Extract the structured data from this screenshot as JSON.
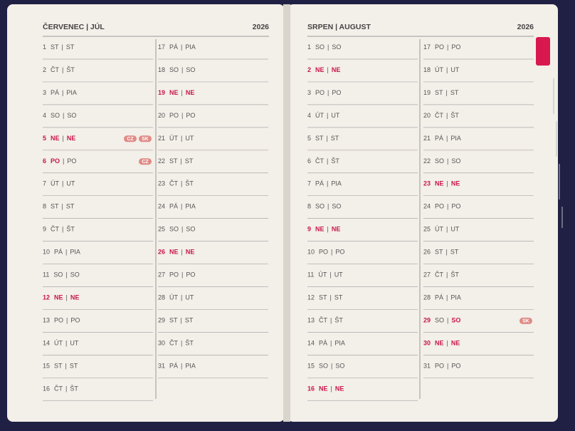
{
  "sep": "|",
  "pages": [
    {
      "title": "ČERVENEC | JÚL",
      "year": "2026",
      "days": [
        {
          "day": "1",
          "cz": "ST",
          "sk": "ST"
        },
        {
          "day": "2",
          "cz": "ČT",
          "sk": "ŠT"
        },
        {
          "day": "3",
          "cz": "PÁ",
          "sk": "PIA"
        },
        {
          "day": "4",
          "cz": "SO",
          "sk": "SO"
        },
        {
          "day": "5",
          "cz": "NE",
          "sk": "NE",
          "red_cz": true,
          "red_sk": true,
          "badges": [
            "CZ",
            "SK"
          ]
        },
        {
          "day": "6",
          "cz": "PO",
          "sk": "PO",
          "red_cz": true,
          "badges": [
            "CZ"
          ]
        },
        {
          "day": "7",
          "cz": "ÚT",
          "sk": "UT"
        },
        {
          "day": "8",
          "cz": "ST",
          "sk": "ST"
        },
        {
          "day": "9",
          "cz": "ČT",
          "sk": "ŠT"
        },
        {
          "day": "10",
          "cz": "PÁ",
          "sk": "PIA"
        },
        {
          "day": "11",
          "cz": "SO",
          "sk": "SO"
        },
        {
          "day": "12",
          "cz": "NE",
          "sk": "NE",
          "red_cz": true,
          "red_sk": true
        },
        {
          "day": "13",
          "cz": "PO",
          "sk": "PO"
        },
        {
          "day": "14",
          "cz": "ÚT",
          "sk": "UT"
        },
        {
          "day": "15",
          "cz": "ST",
          "sk": "ST"
        },
        {
          "day": "16",
          "cz": "ČT",
          "sk": "ŠT"
        },
        {
          "day": "17",
          "cz": "PÁ",
          "sk": "PIA"
        },
        {
          "day": "18",
          "cz": "SO",
          "sk": "SO"
        },
        {
          "day": "19",
          "cz": "NE",
          "sk": "NE",
          "red_cz": true,
          "red_sk": true
        },
        {
          "day": "20",
          "cz": "PO",
          "sk": "PO"
        },
        {
          "day": "21",
          "cz": "ÚT",
          "sk": "UT"
        },
        {
          "day": "22",
          "cz": "ST",
          "sk": "ST"
        },
        {
          "day": "23",
          "cz": "ČT",
          "sk": "ŠT"
        },
        {
          "day": "24",
          "cz": "PÁ",
          "sk": "PIA"
        },
        {
          "day": "25",
          "cz": "SO",
          "sk": "SO"
        },
        {
          "day": "26",
          "cz": "NE",
          "sk": "NE",
          "red_cz": true,
          "red_sk": true
        },
        {
          "day": "27",
          "cz": "PO",
          "sk": "PO"
        },
        {
          "day": "28",
          "cz": "ÚT",
          "sk": "UT"
        },
        {
          "day": "29",
          "cz": "ST",
          "sk": "ST"
        },
        {
          "day": "30",
          "cz": "ČT",
          "sk": "ŠT"
        },
        {
          "day": "31",
          "cz": "PÁ",
          "sk": "PIA"
        }
      ]
    },
    {
      "title": "SRPEN | AUGUST",
      "year": "2026",
      "days": [
        {
          "day": "1",
          "cz": "SO",
          "sk": "SO"
        },
        {
          "day": "2",
          "cz": "NE",
          "sk": "NE",
          "red_cz": true,
          "red_sk": true
        },
        {
          "day": "3",
          "cz": "PO",
          "sk": "PO"
        },
        {
          "day": "4",
          "cz": "ÚT",
          "sk": "UT"
        },
        {
          "day": "5",
          "cz": "ST",
          "sk": "ST"
        },
        {
          "day": "6",
          "cz": "ČT",
          "sk": "ŠT"
        },
        {
          "day": "7",
          "cz": "PÁ",
          "sk": "PIA"
        },
        {
          "day": "8",
          "cz": "SO",
          "sk": "SO"
        },
        {
          "day": "9",
          "cz": "NE",
          "sk": "NE",
          "red_cz": true,
          "red_sk": true
        },
        {
          "day": "10",
          "cz": "PO",
          "sk": "PO"
        },
        {
          "day": "11",
          "cz": "ÚT",
          "sk": "UT"
        },
        {
          "day": "12",
          "cz": "ST",
          "sk": "ST"
        },
        {
          "day": "13",
          "cz": "ČT",
          "sk": "ŠT"
        },
        {
          "day": "14",
          "cz": "PÁ",
          "sk": "PIA"
        },
        {
          "day": "15",
          "cz": "SO",
          "sk": "SO"
        },
        {
          "day": "16",
          "cz": "NE",
          "sk": "NE",
          "red_cz": true,
          "red_sk": true
        },
        {
          "day": "17",
          "cz": "PO",
          "sk": "PO"
        },
        {
          "day": "18",
          "cz": "ÚT",
          "sk": "UT"
        },
        {
          "day": "19",
          "cz": "ST",
          "sk": "ST"
        },
        {
          "day": "20",
          "cz": "ČT",
          "sk": "ŠT"
        },
        {
          "day": "21",
          "cz": "PÁ",
          "sk": "PIA"
        },
        {
          "day": "22",
          "cz": "SO",
          "sk": "SO"
        },
        {
          "day": "23",
          "cz": "NE",
          "sk": "NE",
          "red_cz": true,
          "red_sk": true
        },
        {
          "day": "24",
          "cz": "PO",
          "sk": "PO"
        },
        {
          "day": "25",
          "cz": "ÚT",
          "sk": "UT"
        },
        {
          "day": "26",
          "cz": "ST",
          "sk": "ST"
        },
        {
          "day": "27",
          "cz": "ČT",
          "sk": "ŠT"
        },
        {
          "day": "28",
          "cz": "PÁ",
          "sk": "PIA"
        },
        {
          "day": "29",
          "cz": "SO",
          "sk": "SO",
          "red_sk": true,
          "badges": [
            "SK"
          ]
        },
        {
          "day": "30",
          "cz": "NE",
          "sk": "NE",
          "red_cz": true,
          "red_sk": true
        },
        {
          "day": "31",
          "cz": "PO",
          "sk": "PO"
        }
      ]
    }
  ]
}
